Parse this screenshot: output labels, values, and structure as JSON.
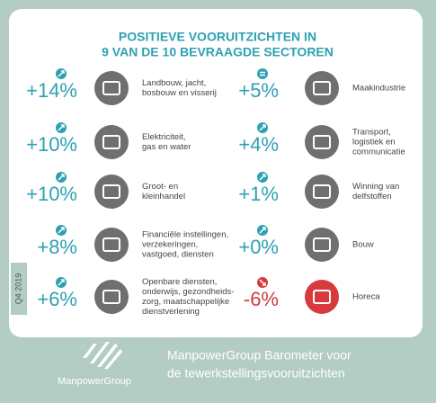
{
  "header": {
    "title_lines": [
      "POSITIEVE VOORUITZICHTEN IN",
      "9 VAN DE 10 BEVRAAGDE SECTOREN"
    ]
  },
  "items": [
    {
      "value": "+14%",
      "trend": "up",
      "label_lines": [
        "Landbouw, jacht,",
        "bosbouw en visserij"
      ]
    },
    {
      "value": "+10%",
      "trend": "up",
      "label_lines": [
        "Elektriciteit,",
        "gas en water"
      ]
    },
    {
      "value": "+10%",
      "trend": "up",
      "label_lines": [
        "Groot- en",
        "kleinhandel"
      ]
    },
    {
      "value": "+8%",
      "trend": "up",
      "label_lines": [
        "Financiële instellingen,",
        "verzekeringen,",
        "vastgoed, diensten"
      ]
    },
    {
      "value": "+6%",
      "trend": "up",
      "label_lines": [
        "Openbare diensten,",
        "onderwijs, gezondheids-",
        "zorg, maatschappelijke",
        "dienstverlening"
      ]
    },
    {
      "value": "+5%",
      "trend": "equal",
      "label_lines": [
        "Maakindustrie"
      ]
    },
    {
      "value": "+4%",
      "trend": "up",
      "label_lines": [
        "Transport,",
        "logistiek en",
        "communicatie"
      ]
    },
    {
      "value": "+1%",
      "trend": "up",
      "label_lines": [
        "Winning van",
        "delfstoffen"
      ]
    },
    {
      "value": "+0%",
      "trend": "up",
      "label_lines": [
        "Bouw"
      ]
    },
    {
      "value": "-6%",
      "trend": "down",
      "label_lines": [
        "Horeca"
      ]
    }
  ],
  "side_tag": "Q4 2019",
  "footer": {
    "brand": "ManpowerGroup",
    "text_lines": [
      "ManpowerGroup Barometer voor",
      "de tewerkstellingsvooruitzichten"
    ]
  }
}
